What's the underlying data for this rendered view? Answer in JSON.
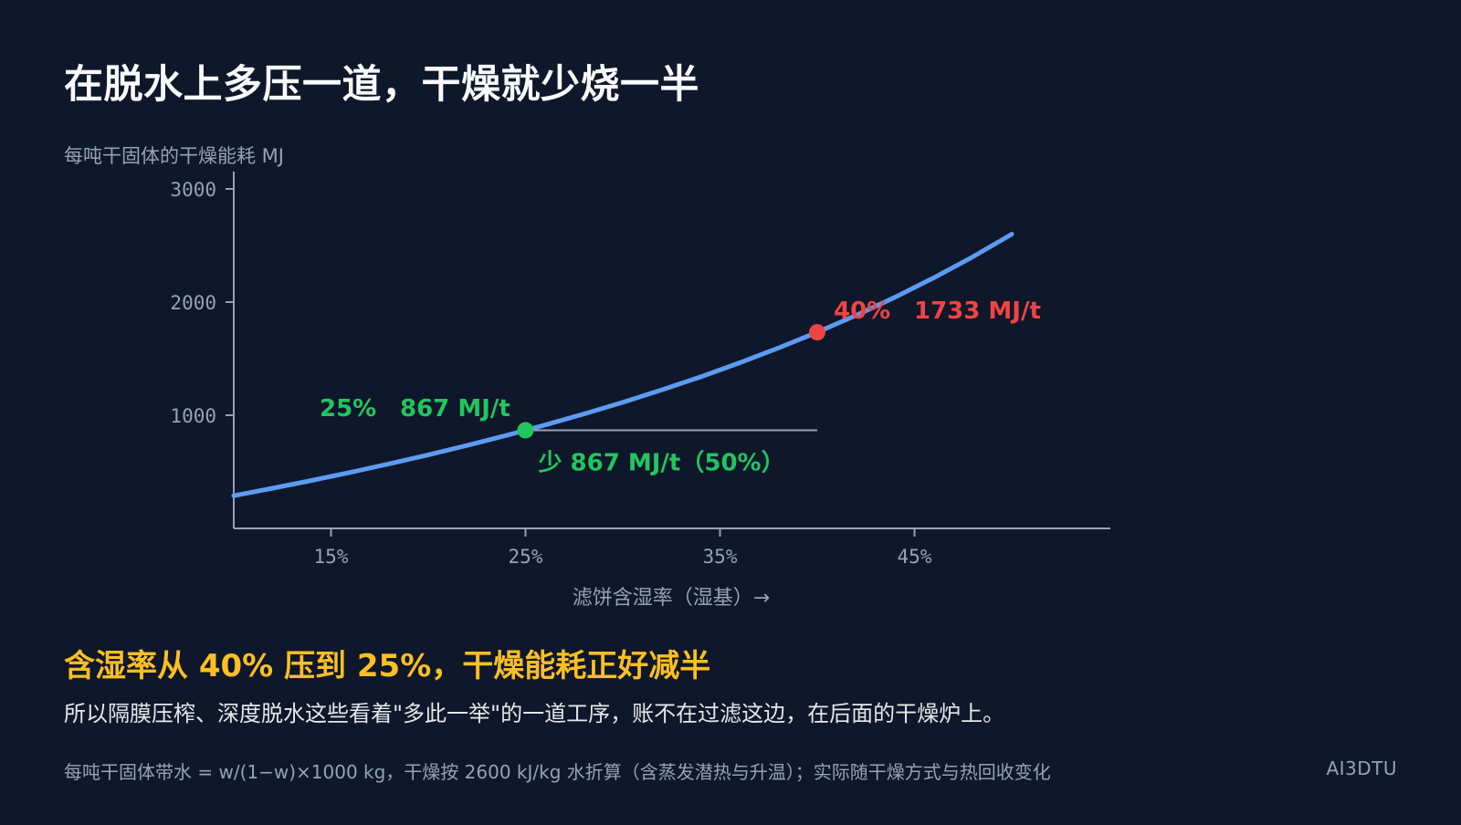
{
  "page": {
    "title": "在脱水上多压一道，干燥就少烧一半",
    "headline": "含湿率从 40% 压到 25%，干燥能耗正好减半",
    "subline": "所以隔膜压榨、深度脱水这些看着\"多此一举\"的一道工序，账不在过滤这边，在后面的干燥炉上。",
    "footnote": "每吨干固体带水 = w/(1−w)×1000 kg，干燥按 2600 kJ/kg 水折算（含蒸发潜热与升温）；实际随干燥方式与热回收变化",
    "brand": "AI3DTU"
  },
  "colors": {
    "background": "#0f172a",
    "curve": "#5b9cf0",
    "axis": "#94a3b8",
    "green": "#22c55e",
    "red": "#ef4444",
    "headline": "#fbbf24"
  },
  "chart_data": {
    "type": "line",
    "ylabel": "每吨干固体的干燥能耗  MJ",
    "xlabel": "滤饼含湿率（湿基）→",
    "xlim": [
      10,
      55
    ],
    "ylim": [
      0,
      3000
    ],
    "yticks": [
      1000,
      2000,
      3000
    ],
    "ytick_labels": [
      "1000",
      "2000",
      "3000"
    ],
    "xticks": [
      15,
      25,
      35,
      45
    ],
    "xtick_labels": [
      "15%",
      "25%",
      "35%",
      "45%"
    ],
    "series": [
      {
        "formula": "2600*w/(1-w)",
        "x": [
          10,
          12,
          14,
          16,
          18,
          20,
          22,
          24,
          25,
          26,
          28,
          30,
          32,
          34,
          36,
          38,
          40,
          42,
          44,
          46,
          48,
          50
        ],
        "y": [
          289,
          355,
          423,
          495,
          571,
          650,
          733,
          821,
          867,
          914,
          1011,
          1114,
          1224,
          1339,
          1463,
          1594,
          1733,
          1883,
          2043,
          2215,
          2400,
          2600
        ]
      }
    ],
    "points": [
      {
        "x": 25,
        "y": 867,
        "color": "green",
        "label_pct": "25%",
        "label_val": "867 MJ/t"
      },
      {
        "x": 40,
        "y": 1733,
        "color": "red",
        "label_pct": "40%",
        "label_val": "1733 MJ/t"
      }
    ],
    "reference_line": {
      "y": 867,
      "x_start": 25,
      "x_end": 40,
      "label": "少 867 MJ/t（50%）"
    }
  }
}
